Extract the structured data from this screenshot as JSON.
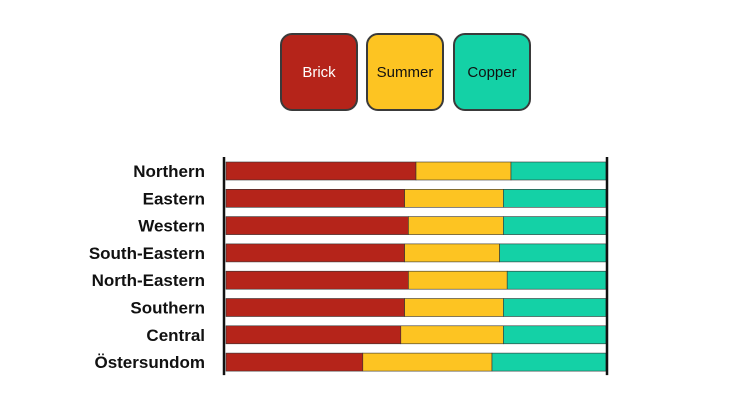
{
  "chart_data": {
    "type": "bar",
    "orientation": "horizontal",
    "stacked": true,
    "normalized": true,
    "categories": [
      "Northern",
      "Eastern",
      "Western",
      "South-Eastern",
      "North-Eastern",
      "Southern",
      "Central",
      "Östersundom"
    ],
    "series": [
      {
        "name": "Brick",
        "color": "#b5241a",
        "values": [
          0.5,
          0.47,
          0.48,
          0.47,
          0.48,
          0.47,
          0.46,
          0.36
        ]
      },
      {
        "name": "Summer",
        "color": "#fdc422",
        "values": [
          0.25,
          0.26,
          0.25,
          0.25,
          0.26,
          0.26,
          0.27,
          0.34
        ]
      },
      {
        "name": "Copper",
        "color": "#14d1a6",
        "values": [
          0.25,
          0.27,
          0.27,
          0.28,
          0.26,
          0.27,
          0.27,
          0.3
        ]
      }
    ],
    "xlim": [
      0,
      1
    ],
    "grid": false,
    "legend_position": "top"
  },
  "legend": {
    "items": [
      {
        "label": "Brick",
        "color": "#b5241a",
        "text_color": "#ffffff"
      },
      {
        "label": "Summer",
        "color": "#fdc422",
        "text_color": "#111111"
      },
      {
        "label": "Copper",
        "color": "#14d1a6",
        "text_color": "#111111"
      }
    ]
  }
}
